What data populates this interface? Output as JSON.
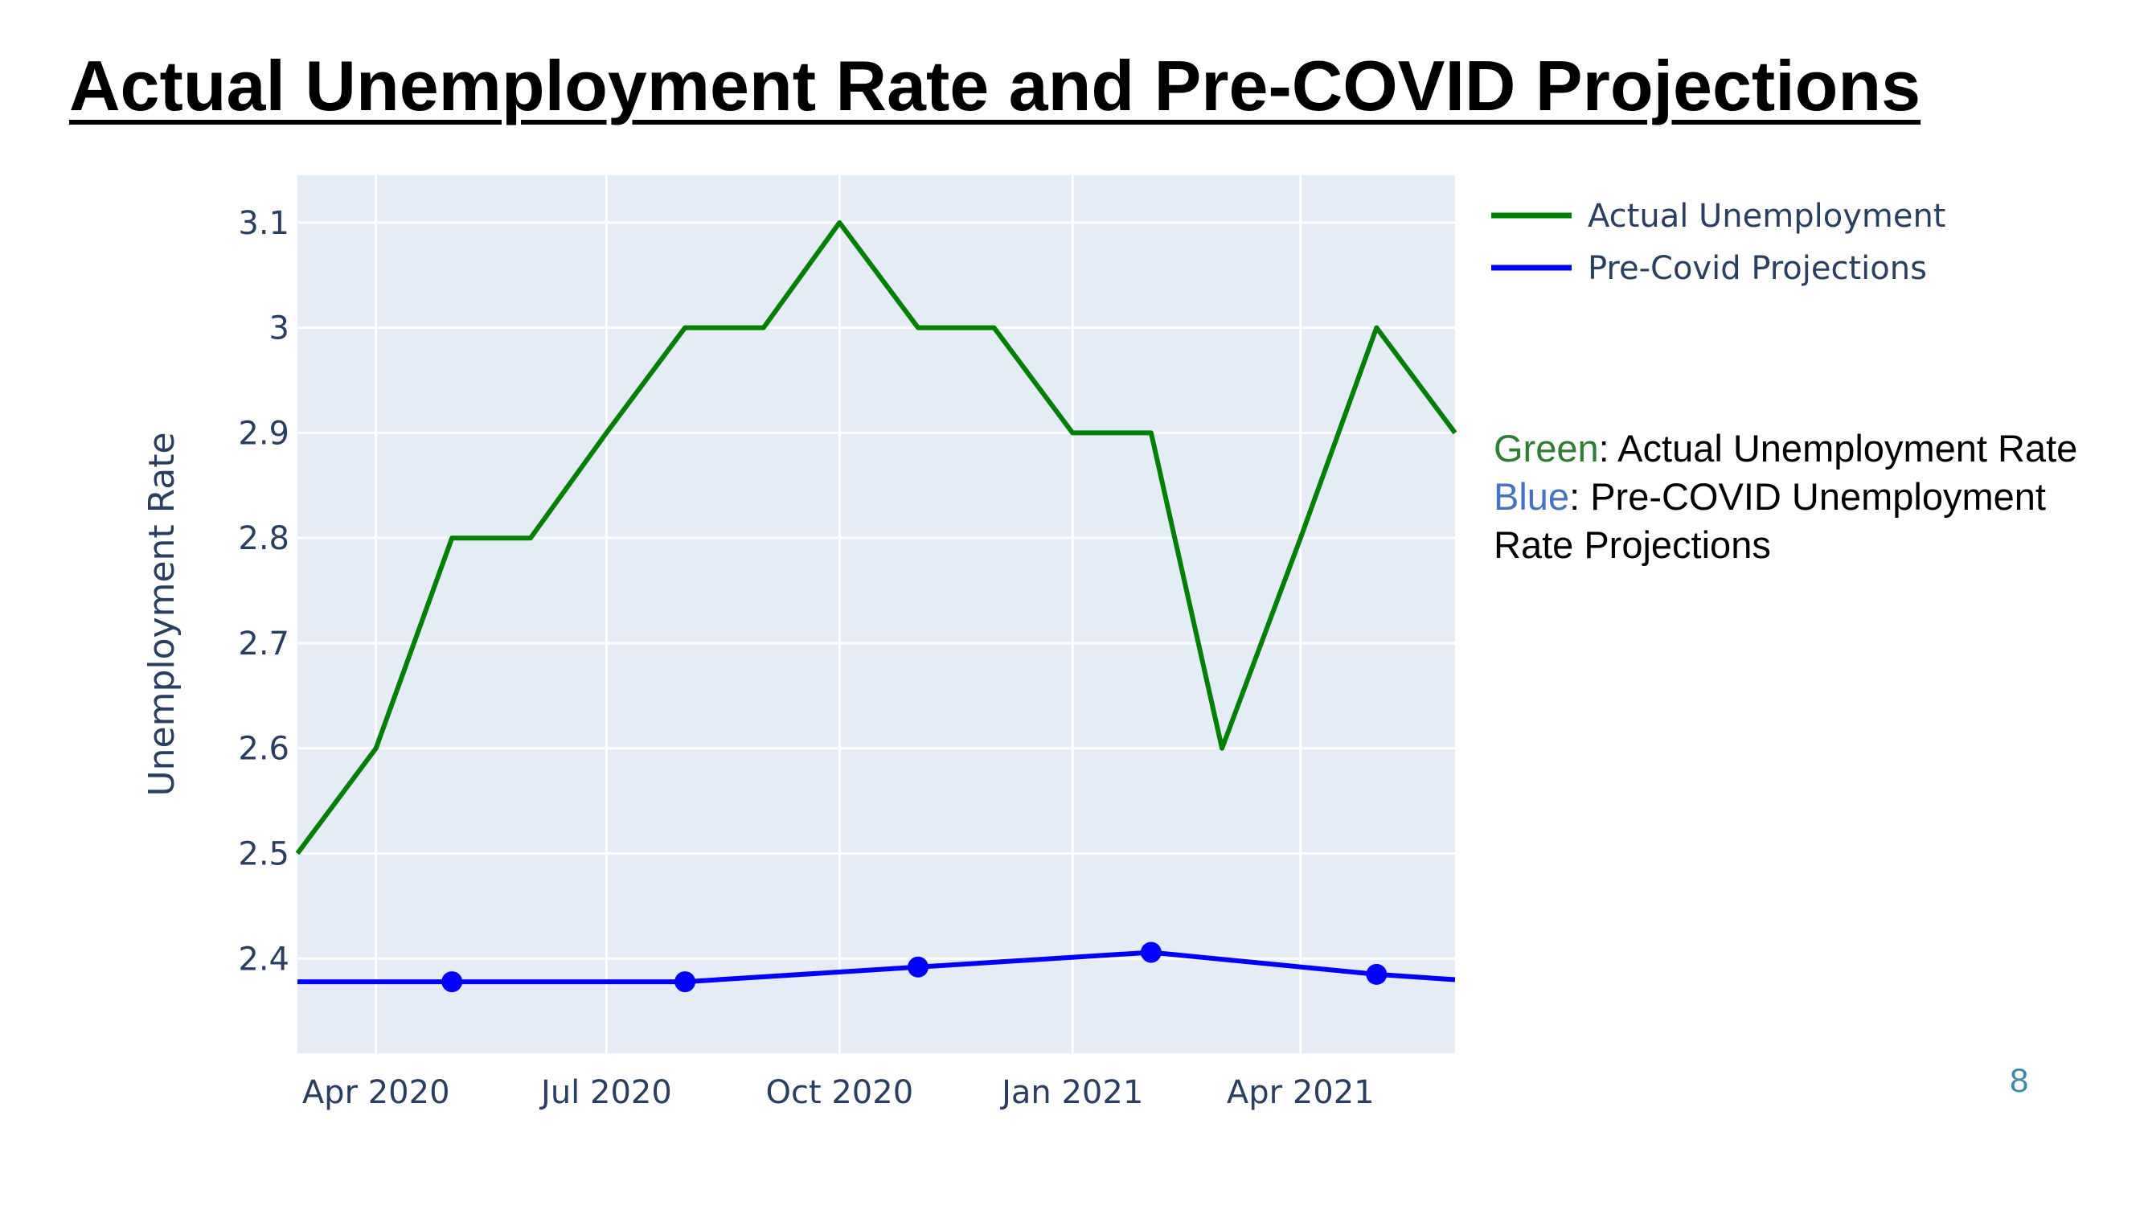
{
  "slide": {
    "title": "Actual Unemployment Rate and Pre-COVID Projections",
    "page_number": "8"
  },
  "note": {
    "green_word": "Green",
    "green_text": ": Actual Unemployment Rate",
    "blue_word": "Blue",
    "blue_text1": ": Pre-COVID Unemployment",
    "blue_text2": "Rate Projections"
  },
  "colors": {
    "plot_bg": "#e5ecf6",
    "grid": "#ffffff",
    "actual": "#008000",
    "projection": "#0000ff",
    "tick_text": "#2a3f5f",
    "note_green": "#2e7d32",
    "note_blue": "#4472c4"
  },
  "chart_data": {
    "type": "line",
    "title": "",
    "xlabel": "",
    "ylabel": "Unemployment Rate",
    "x_range": [
      "2020-03-01",
      "2021-06-01"
    ],
    "ylim": [
      2.31,
      3.145
    ],
    "yticks": [
      2.4,
      2.5,
      2.6,
      2.7,
      2.8,
      2.9,
      3,
      3.1
    ],
    "ytick_labels": [
      "2.4",
      "2.5",
      "2.6",
      "2.7",
      "2.8",
      "2.9",
      "3",
      "3.1"
    ],
    "xticks": [
      "2020-04-01",
      "2020-07-01",
      "2020-10-01",
      "2021-01-01",
      "2021-04-01"
    ],
    "xtick_labels": [
      "Apr 2020",
      "Jul 2020",
      "Oct 2020",
      "Jan 2021",
      "Apr 2021"
    ],
    "grid": true,
    "legend_position": "top-right",
    "series": [
      {
        "name": "Actual Unemployment",
        "color": "#008000",
        "markers": false,
        "points": [
          {
            "x": "2020-03-01",
            "y": 2.5
          },
          {
            "x": "2020-04-01",
            "y": 2.6
          },
          {
            "x": "2020-05-01",
            "y": 2.8
          },
          {
            "x": "2020-06-01",
            "y": 2.8
          },
          {
            "x": "2020-07-01",
            "y": 2.9
          },
          {
            "x": "2020-08-01",
            "y": 3.0
          },
          {
            "x": "2020-09-01",
            "y": 3.0
          },
          {
            "x": "2020-10-01",
            "y": 3.1
          },
          {
            "x": "2020-11-01",
            "y": 3.0
          },
          {
            "x": "2020-12-01",
            "y": 3.0
          },
          {
            "x": "2021-01-01",
            "y": 2.9
          },
          {
            "x": "2021-02-01",
            "y": 2.9
          },
          {
            "x": "2021-03-01",
            "y": 2.6
          },
          {
            "x": "2021-04-01",
            "y": 2.8
          },
          {
            "x": "2021-05-01",
            "y": 3.0
          },
          {
            "x": "2021-06-01",
            "y": 2.9
          }
        ]
      },
      {
        "name": "Pre-Covid Projections",
        "color": "#0000ff",
        "markers": true,
        "points": [
          {
            "x": "2020-03-01",
            "y": 2.378,
            "marker": false
          },
          {
            "x": "2020-05-01",
            "y": 2.378,
            "marker": true
          },
          {
            "x": "2020-08-01",
            "y": 2.378,
            "marker": true
          },
          {
            "x": "2020-11-01",
            "y": 2.392,
            "marker": true
          },
          {
            "x": "2021-02-01",
            "y": 2.406,
            "marker": true
          },
          {
            "x": "2021-05-01",
            "y": 2.385,
            "marker": true
          },
          {
            "x": "2021-06-01",
            "y": 2.38,
            "marker": false
          }
        ]
      }
    ]
  }
}
